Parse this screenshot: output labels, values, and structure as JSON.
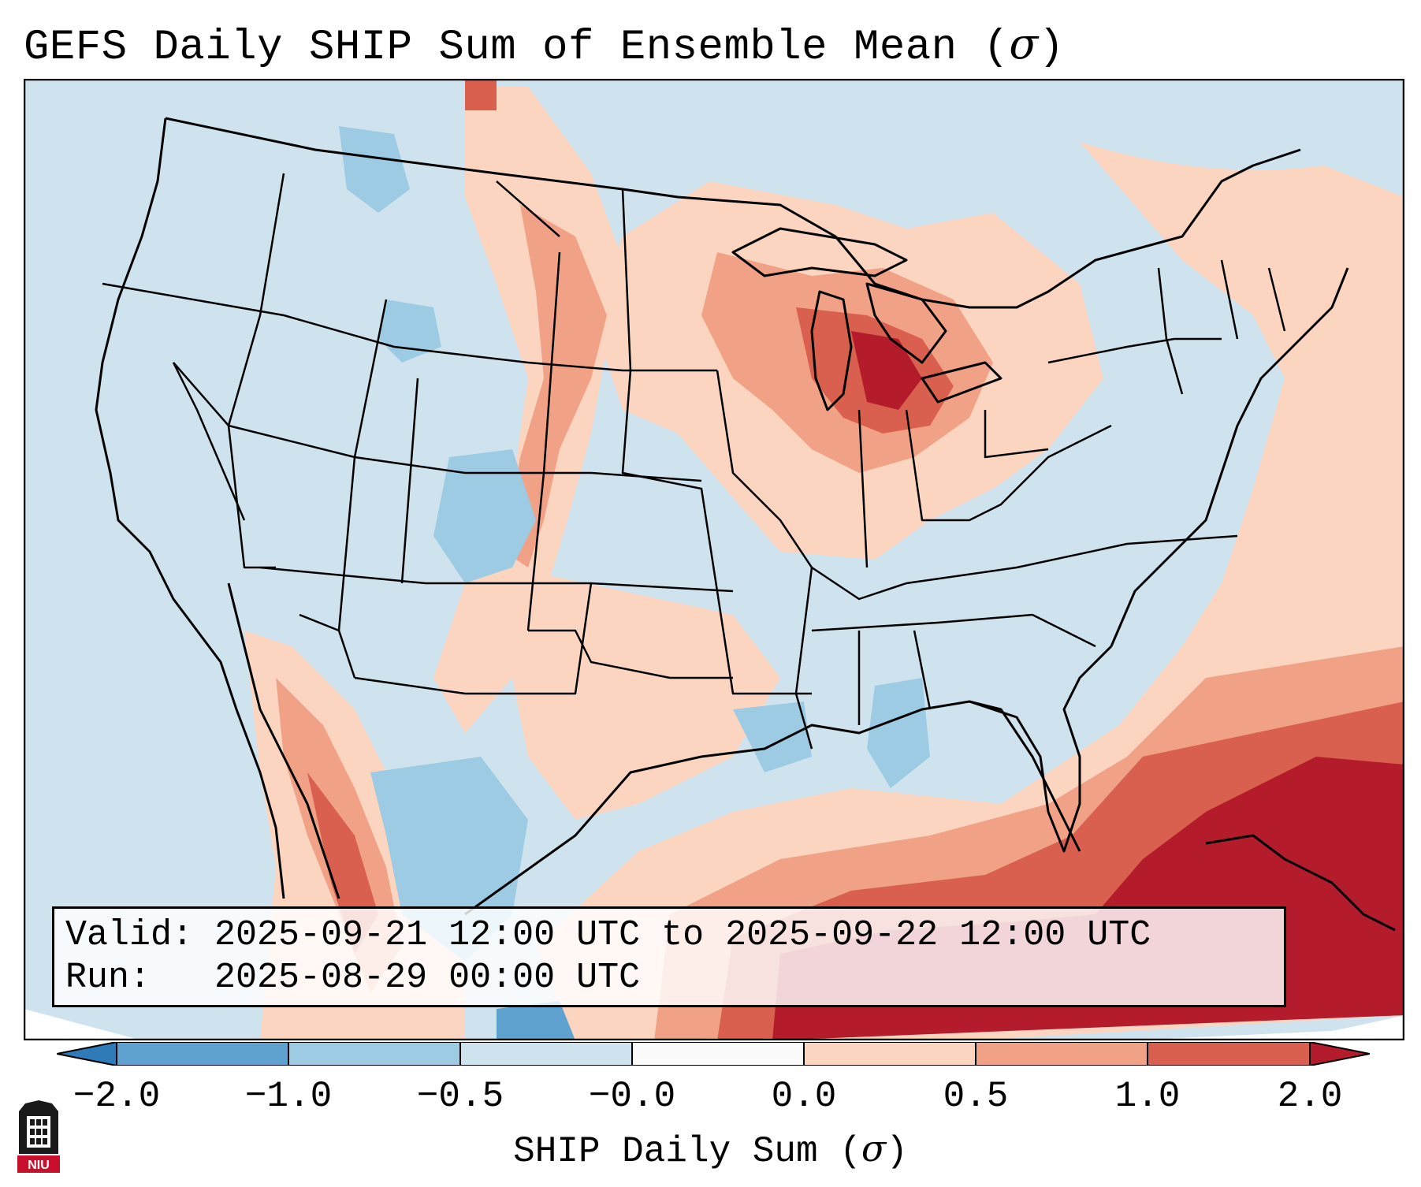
{
  "title": {
    "prefix": "GEFS Daily SHIP Sum of Ensemble Mean (",
    "symbol": "σ",
    "suffix": ")"
  },
  "info": {
    "valid_line": "Valid: 2025-09-21 12:00 UTC to 2025-09-22 12:00 UTC",
    "run_line": "Run:   2025-08-29 00:00 UTC"
  },
  "colorbar": {
    "label_prefix": "SHIP Daily Sum (",
    "label_symbol": "σ",
    "label_suffix": ")",
    "tick_labels": [
      "−2.0",
      "−1.0",
      "−0.5",
      "−0.0",
      "0.0",
      "0.5",
      "1.0",
      "2.0"
    ],
    "colors": [
      "#2f7bb8",
      "#5fa1cf",
      "#9dcbe3",
      "#cfe3ef",
      "#fbfbfb",
      "#fcd5c0",
      "#f0a186",
      "#d9604e",
      "#b41b2b"
    ],
    "under_color": "#2f7bb8",
    "over_color": "#b41b2b"
  },
  "map": {
    "ocean_color": "#cfe3ef",
    "line_color": "#000000"
  },
  "logo": {
    "text": "NIU"
  }
}
